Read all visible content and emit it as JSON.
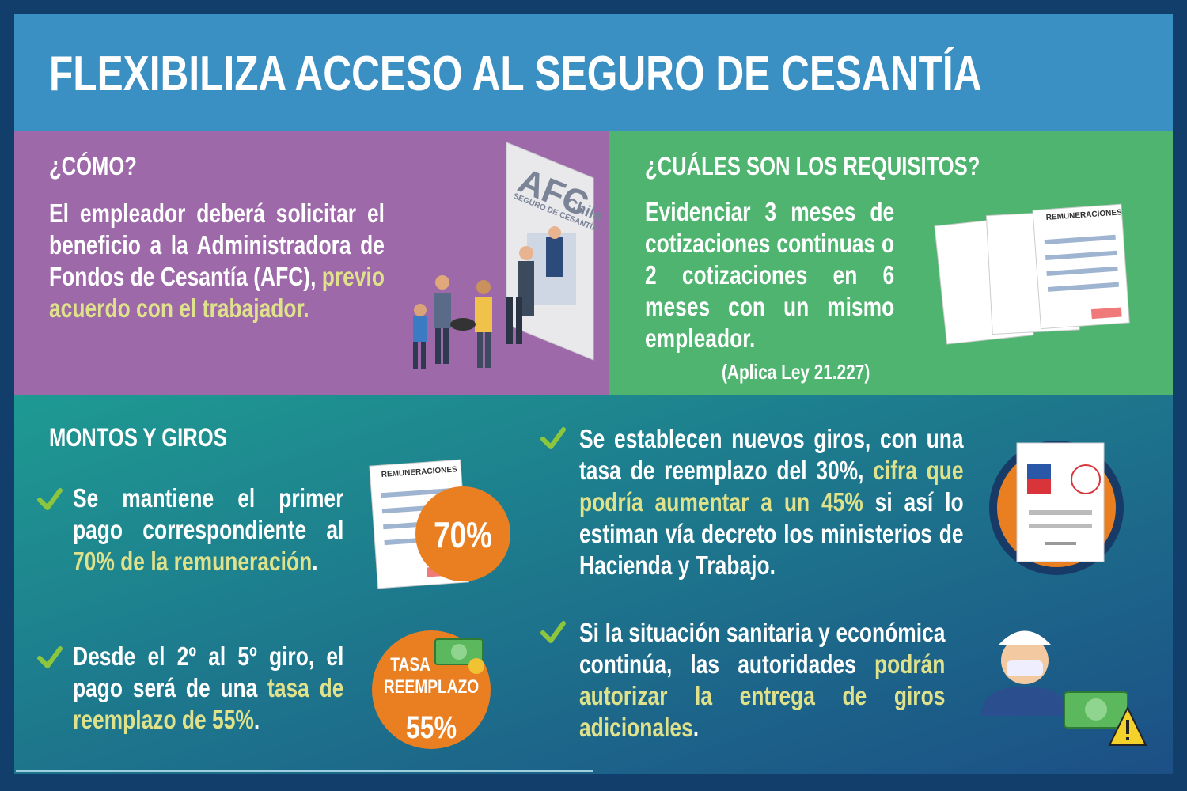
{
  "title": "FLEXIBILIZA ACCESO AL SEGURO DE CESANTÍA",
  "como": {
    "heading": "¿CÓMO?",
    "parts": [
      {
        "text": "El empleador deberá solicitar el beneficio a la Administradora de Fondos de Cesantía (AFC), ",
        "highlight": false
      },
      {
        "text": "previo acuerdo con el trabajador.",
        "highlight": true
      }
    ],
    "sign": {
      "brand": "AFC",
      "country": "Chile",
      "subtitle": "SEGURO DE CESANTÍA"
    }
  },
  "requisitos": {
    "heading": "¿CUÁLES SON LOS REQUISITOS?",
    "parts": [
      {
        "text": "Evidenciar 3 meses de cotizaciones continuas o 2 cotizaciones en 6 meses con un mismo empleador.",
        "highlight": false
      }
    ],
    "note": "(Aplica Ley 21.227)",
    "document_label": "REMUNERACIONES"
  },
  "montos": {
    "heading": "MONTOS Y GIROS",
    "items": [
      {
        "parts": [
          {
            "text": "Se mantiene el primer pago correspondiente al ",
            "highlight": false
          },
          {
            "text": "70% de la remuneración",
            "highlight": true
          },
          {
            "text": ".",
            "highlight": false
          }
        ],
        "document_label": "REMUNERACIONES",
        "badge": "70%"
      },
      {
        "parts": [
          {
            "text": "Desde el 2º al 5º giro, el pago será de una ",
            "highlight": false
          },
          {
            "text": "tasa de reemplazo de 55%",
            "highlight": true
          },
          {
            "text": ".",
            "highlight": false
          }
        ],
        "badge_top": "TASA REEMPLAZO",
        "badge": "55%"
      },
      {
        "parts": [
          {
            "text": "Se establecen nuevos giros, con una tasa de reemplazo del 30%, ",
            "highlight": false
          },
          {
            "text": "cifra que podría aumentar a un 45%",
            "highlight": true
          },
          {
            "text": " si así lo estiman vía decreto los ministerios de Hacienda y Trabajo.",
            "highlight": false
          }
        ]
      },
      {
        "parts": [
          {
            "text": "Si la situación sanitaria y económica continúa, las autoridades ",
            "highlight": false
          },
          {
            "text": "podrán autorizar la entrega de giros adicionales",
            "highlight": true
          },
          {
            "text": ".",
            "highlight": false
          }
        ]
      }
    ]
  }
}
